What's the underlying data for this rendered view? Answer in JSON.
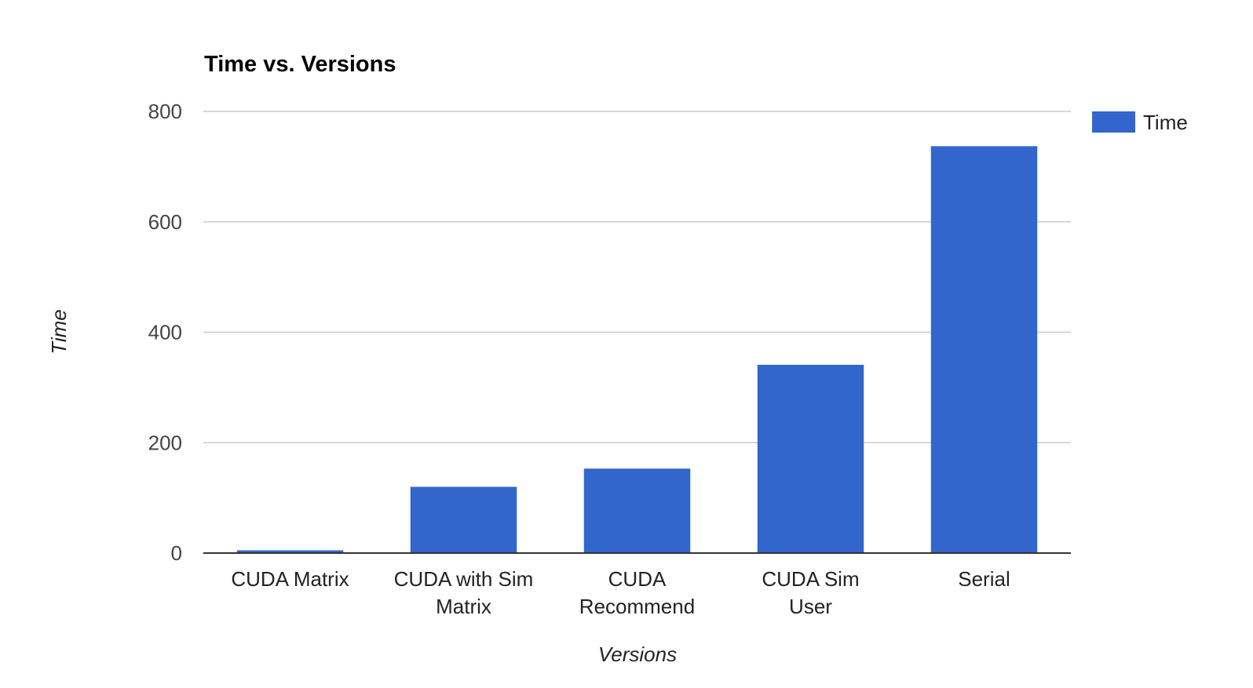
{
  "chart_data": {
    "type": "bar",
    "title": "Time vs. Versions",
    "xlabel": "Versions",
    "ylabel": "Time",
    "categories": [
      [
        "CUDA Matrix"
      ],
      [
        "CUDA with Sim",
        "Matrix"
      ],
      [
        "CUDA",
        "Recommend"
      ],
      [
        "CUDA Sim",
        "User"
      ],
      [
        "Serial"
      ]
    ],
    "series": [
      {
        "name": "Time",
        "color": "#3366cc",
        "values": [
          5,
          120,
          153,
          341,
          737
        ]
      }
    ],
    "ylim": [
      0,
      800
    ],
    "yticks": [
      0,
      200,
      400,
      600,
      800
    ],
    "grid": true,
    "legend": "right"
  }
}
